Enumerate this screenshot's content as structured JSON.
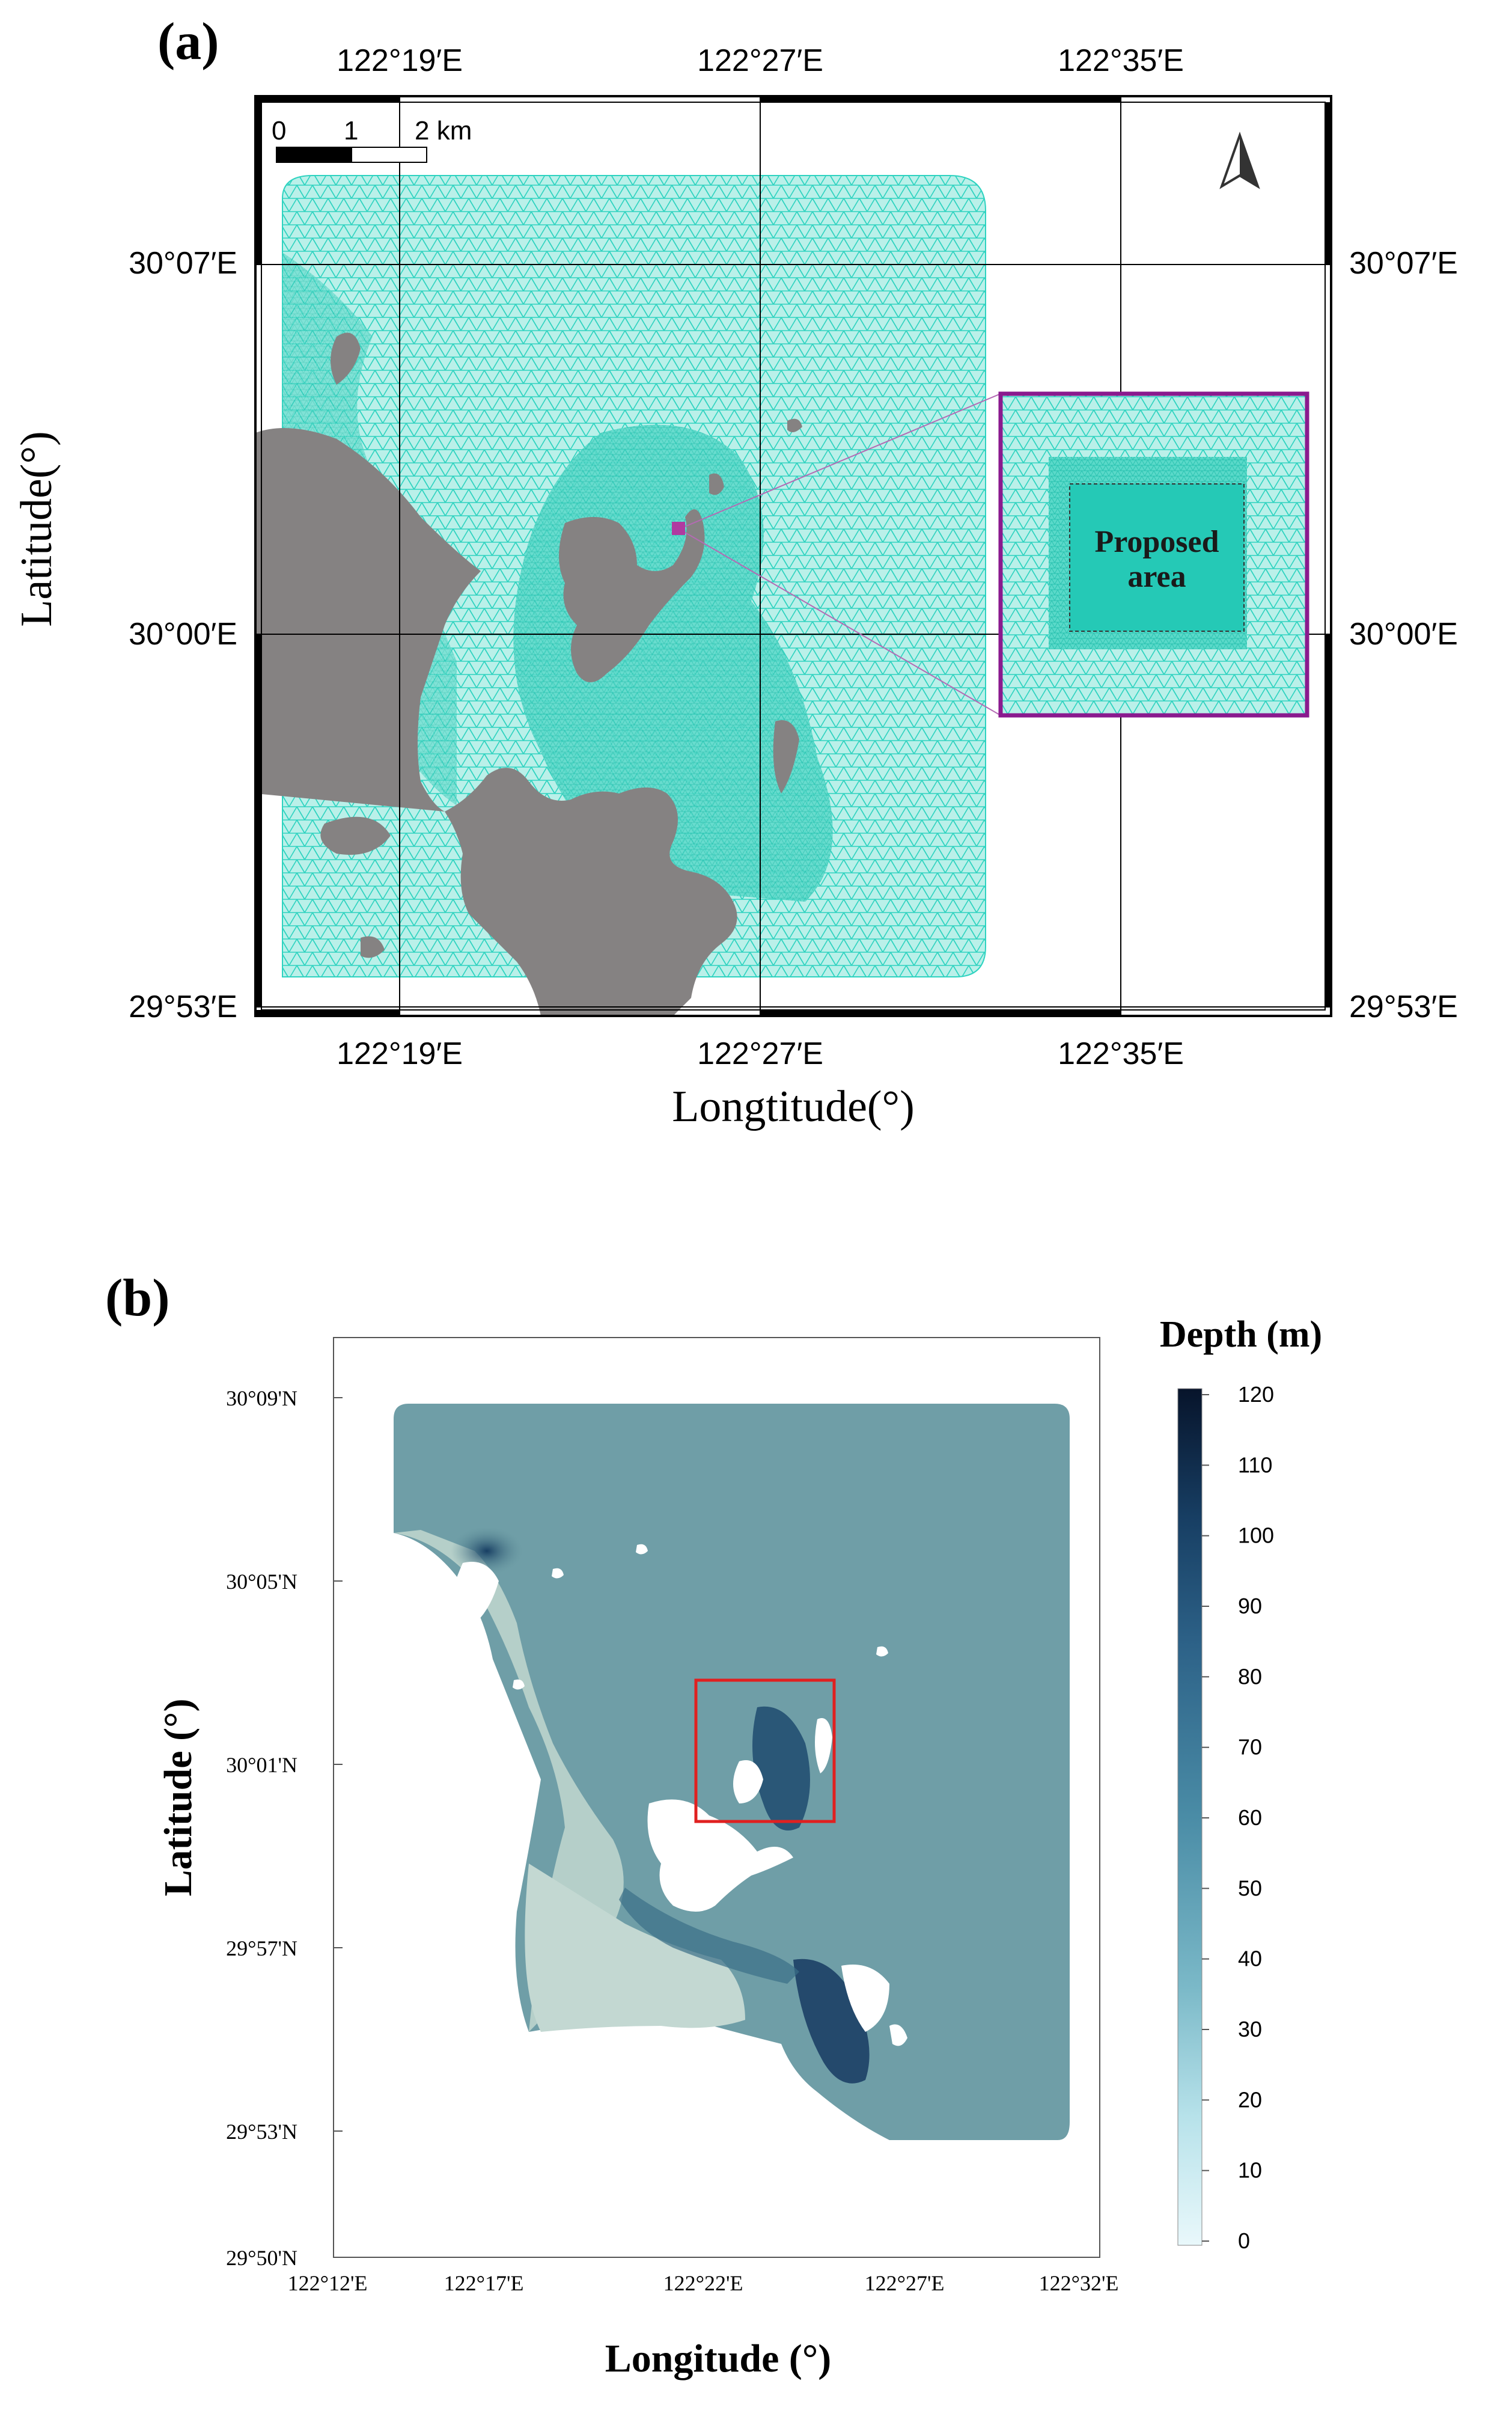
{
  "panel_a": {
    "label": "(a)",
    "top_ticks": [
      "122°19′E",
      "122°27′E",
      "122°35′E"
    ],
    "bottom_ticks": [
      "122°19′E",
      "122°27′E",
      "122°35′E"
    ],
    "left_ticks": [
      "30°07′E",
      "30°00′E",
      "29°53′E"
    ],
    "right_ticks": [
      "30°07′E",
      "30°00′E",
      "29°53′E"
    ],
    "x_axis_label": "Longtitude(°)",
    "y_axis_label": "Latitude(°)",
    "scalebar": {
      "labels": [
        "0",
        "1",
        "2 km"
      ]
    },
    "inset": {
      "label_line1": "Proposed",
      "label_line2": "area"
    },
    "colors": {
      "mesh": "#2ed3c0",
      "land": "#858282",
      "inset_border": "#8a1a8e",
      "frame": "#000000"
    }
  },
  "panel_b": {
    "label": "(b)",
    "x_ticks": [
      "122°12'E",
      "122°17'E",
      "122°22'E",
      "122°27'E",
      "122°32'E"
    ],
    "y_ticks": [
      "30°09'N",
      "30°05'N",
      "30°01'N",
      "29°57'N",
      "29°53'N",
      "29°50'N"
    ],
    "x_axis_label": "Longitude (°)",
    "y_axis_label": "Latitude (°)",
    "colorbar": {
      "title": "Depth (m)",
      "ticks": [
        "120",
        "110",
        "100",
        "90",
        "80",
        "70",
        "60",
        "50",
        "40",
        "30",
        "20",
        "10",
        "0"
      ],
      "min": 0,
      "max": 120
    },
    "colors": {
      "highlight_box": "#e02020",
      "shallow": "#d4e6e4",
      "deep": "#0b1f3a"
    }
  }
}
